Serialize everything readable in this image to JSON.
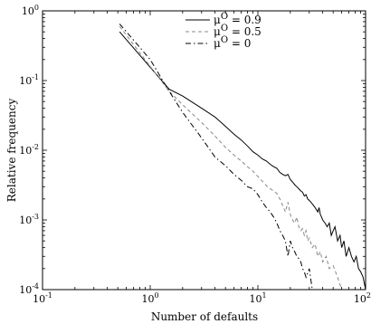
{
  "chart_data": {
    "type": "line",
    "title": "",
    "xlabel": "Number of defaults",
    "ylabel": "Relative frequency",
    "xscale": "log",
    "yscale": "log",
    "xlim": [
      0.1,
      100
    ],
    "ylim": [
      0.0001,
      1
    ],
    "grid": false,
    "legend_position": "top-right",
    "x_ticks": [
      {
        "value": 0.1,
        "base": "10",
        "exp": "-1"
      },
      {
        "value": 1,
        "base": "10",
        "exp": "0"
      },
      {
        "value": 10,
        "base": "10",
        "exp": "1"
      },
      {
        "value": 100,
        "base": "10",
        "exp": "2"
      }
    ],
    "y_ticks": [
      {
        "value": 1,
        "base": "10",
        "exp": "0"
      },
      {
        "value": 0.1,
        "base": "10",
        "exp": "-1"
      },
      {
        "value": 0.01,
        "base": "10",
        "exp": "-2"
      },
      {
        "value": 0.001,
        "base": "10",
        "exp": "-3"
      },
      {
        "value": 0.0001,
        "base": "10",
        "exp": "-4"
      }
    ],
    "legend": [
      {
        "text": "μO = 0.9",
        "mu": "μ",
        "sup": "O",
        "rest": " = 0.9",
        "style": "solid"
      },
      {
        "text": "μO = 0.5",
        "mu": "μ",
        "sup": "O",
        "rest": " = 0.5",
        "style": "dashed"
      },
      {
        "text": "μO = 0",
        "mu": "μ",
        "sup": "O",
        "rest": " = 0",
        "style": "dashdot"
      }
    ],
    "series": [
      {
        "style": "solid",
        "color": "#000000",
        "points": [
          [
            0.52,
            0.5
          ],
          [
            1.5,
            0.075
          ],
          [
            2,
            0.06
          ],
          [
            3,
            0.04
          ],
          [
            4,
            0.03
          ],
          [
            5,
            0.022
          ],
          [
            6,
            0.017
          ],
          [
            7,
            0.014
          ],
          [
            8,
            0.0115
          ],
          [
            9,
            0.0095
          ],
          [
            10,
            0.0085
          ],
          [
            11,
            0.0075
          ],
          [
            12,
            0.007
          ],
          [
            13,
            0.0063
          ],
          [
            14,
            0.0058
          ],
          [
            15,
            0.0055
          ],
          [
            16,
            0.0048
          ],
          [
            17,
            0.0045
          ],
          [
            18,
            0.0043
          ],
          [
            19,
            0.0045
          ],
          [
            20,
            0.0038
          ],
          [
            21,
            0.0035
          ],
          [
            22,
            0.0032
          ],
          [
            23,
            0.003
          ],
          [
            24,
            0.0028
          ],
          [
            25,
            0.0026
          ],
          [
            26,
            0.0025
          ],
          [
            27,
            0.0022
          ],
          [
            28,
            0.0023
          ],
          [
            29,
            0.002
          ],
          [
            30,
            0.0019
          ],
          [
            31,
            0.0018
          ],
          [
            32,
            0.0017
          ],
          [
            33,
            0.0016
          ],
          [
            34,
            0.0015
          ],
          [
            35,
            0.0014
          ],
          [
            36,
            0.0013
          ],
          [
            37,
            0.0015
          ],
          [
            38,
            0.0012
          ],
          [
            39,
            0.0011
          ],
          [
            40,
            0.001
          ],
          [
            42,
            0.0009
          ],
          [
            44,
            0.0008
          ],
          [
            46,
            0.0009
          ],
          [
            48,
            0.0006
          ],
          [
            50,
            0.0007
          ],
          [
            52,
            0.0008
          ],
          [
            55,
            0.0005
          ],
          [
            58,
            0.0006
          ],
          [
            60,
            0.0004
          ],
          [
            63,
            0.0005
          ],
          [
            66,
            0.0003
          ],
          [
            70,
            0.0004
          ],
          [
            74,
            0.0003
          ],
          [
            78,
            0.00025
          ],
          [
            82,
            0.0003
          ],
          [
            86,
            0.0002
          ],
          [
            90,
            0.00018
          ],
          [
            95,
            0.00015
          ],
          [
            100,
            0.0001
          ]
        ]
      },
      {
        "style": "dashed",
        "color": "#888888",
        "points": [
          [
            0.52,
            0.6
          ],
          [
            1.5,
            0.07
          ],
          [
            2,
            0.045
          ],
          [
            3,
            0.025
          ],
          [
            4,
            0.016
          ],
          [
            5,
            0.011
          ],
          [
            6,
            0.0085
          ],
          [
            7,
            0.007
          ],
          [
            8,
            0.0058
          ],
          [
            9,
            0.005
          ],
          [
            10,
            0.0042
          ],
          [
            11,
            0.0036
          ],
          [
            12,
            0.0031
          ],
          [
            13,
            0.0028
          ],
          [
            14,
            0.0026
          ],
          [
            15,
            0.0024
          ],
          [
            16,
            0.002
          ],
          [
            17,
            0.0016
          ],
          [
            18,
            0.0013
          ],
          [
            19,
            0.0018
          ],
          [
            20,
            0.0012
          ],
          [
            21,
            0.001
          ],
          [
            22,
            0.0009
          ],
          [
            23,
            0.0011
          ],
          [
            24,
            0.0008
          ],
          [
            25,
            0.0007
          ],
          [
            26,
            0.00075
          ],
          [
            27,
            0.0006
          ],
          [
            28,
            0.0007
          ],
          [
            29,
            0.0005
          ],
          [
            30,
            0.00055
          ],
          [
            32,
            0.0004
          ],
          [
            34,
            0.00045
          ],
          [
            36,
            0.0003
          ],
          [
            38,
            0.00035
          ],
          [
            40,
            0.00025
          ],
          [
            43,
            0.0003
          ],
          [
            46,
            0.0002
          ],
          [
            50,
            0.00022
          ],
          [
            55,
            0.00015
          ],
          [
            60,
            0.0001
          ]
        ]
      },
      {
        "style": "dashdot",
        "color": "#000000",
        "points": [
          [
            0.52,
            0.65
          ],
          [
            1,
            0.2
          ],
          [
            1.5,
            0.07
          ],
          [
            2,
            0.035
          ],
          [
            3,
            0.015
          ],
          [
            4,
            0.008
          ],
          [
            5,
            0.006
          ],
          [
            6,
            0.0045
          ],
          [
            7,
            0.0037
          ],
          [
            8,
            0.003
          ],
          [
            9,
            0.0028
          ],
          [
            10,
            0.0023
          ],
          [
            11,
            0.0018
          ],
          [
            12,
            0.0015
          ],
          [
            13,
            0.0013
          ],
          [
            14,
            0.0011
          ],
          [
            15,
            0.0009
          ],
          [
            16,
            0.0007
          ],
          [
            17,
            0.0006
          ],
          [
            18,
            0.0005
          ],
          [
            19,
            0.0003
          ],
          [
            20,
            0.0005
          ],
          [
            21,
            0.0004
          ],
          [
            22,
            0.00035
          ],
          [
            23,
            0.0003
          ],
          [
            24,
            0.00028
          ],
          [
            25,
            0.00025
          ],
          [
            26,
            0.0002
          ],
          [
            27,
            0.00018
          ],
          [
            28,
            0.00015
          ],
          [
            30,
            0.0002
          ],
          [
            32,
            0.0001
          ]
        ]
      }
    ]
  }
}
